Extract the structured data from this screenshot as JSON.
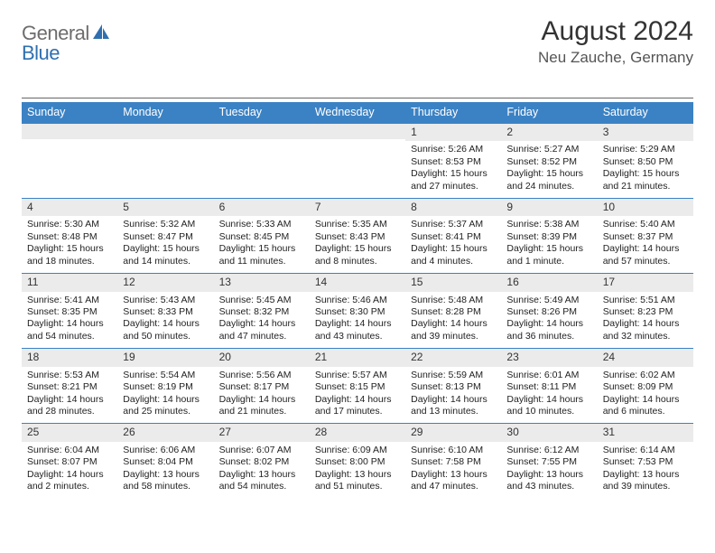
{
  "logo": {
    "general": "General",
    "blue": "Blue"
  },
  "title": "August 2024",
  "location": "Neu Zauche, Germany",
  "colors": {
    "header_bg": "#3b82c4",
    "header_text": "#ffffff",
    "daynum_bg": "#ebebeb",
    "border_top": "#3b82c4",
    "body_text": "#222222",
    "title_text": "#333333",
    "location_text": "#555555",
    "logo_gray": "#6d6d6d",
    "logo_blue": "#2f6fb0"
  },
  "daysOfWeek": [
    "Sunday",
    "Monday",
    "Tuesday",
    "Wednesday",
    "Thursday",
    "Friday",
    "Saturday"
  ],
  "weeks": [
    [
      null,
      null,
      null,
      null,
      {
        "num": "1",
        "sunrise": "5:26 AM",
        "sunset": "8:53 PM",
        "daylight": "Daylight: 15 hours and 27 minutes."
      },
      {
        "num": "2",
        "sunrise": "5:27 AM",
        "sunset": "8:52 PM",
        "daylight": "Daylight: 15 hours and 24 minutes."
      },
      {
        "num": "3",
        "sunrise": "5:29 AM",
        "sunset": "8:50 PM",
        "daylight": "Daylight: 15 hours and 21 minutes."
      }
    ],
    [
      {
        "num": "4",
        "sunrise": "5:30 AM",
        "sunset": "8:48 PM",
        "daylight": "Daylight: 15 hours and 18 minutes."
      },
      {
        "num": "5",
        "sunrise": "5:32 AM",
        "sunset": "8:47 PM",
        "daylight": "Daylight: 15 hours and 14 minutes."
      },
      {
        "num": "6",
        "sunrise": "5:33 AM",
        "sunset": "8:45 PM",
        "daylight": "Daylight: 15 hours and 11 minutes."
      },
      {
        "num": "7",
        "sunrise": "5:35 AM",
        "sunset": "8:43 PM",
        "daylight": "Daylight: 15 hours and 8 minutes."
      },
      {
        "num": "8",
        "sunrise": "5:37 AM",
        "sunset": "8:41 PM",
        "daylight": "Daylight: 15 hours and 4 minutes."
      },
      {
        "num": "9",
        "sunrise": "5:38 AM",
        "sunset": "8:39 PM",
        "daylight": "Daylight: 15 hours and 1 minute."
      },
      {
        "num": "10",
        "sunrise": "5:40 AM",
        "sunset": "8:37 PM",
        "daylight": "Daylight: 14 hours and 57 minutes."
      }
    ],
    [
      {
        "num": "11",
        "sunrise": "5:41 AM",
        "sunset": "8:35 PM",
        "daylight": "Daylight: 14 hours and 54 minutes."
      },
      {
        "num": "12",
        "sunrise": "5:43 AM",
        "sunset": "8:33 PM",
        "daylight": "Daylight: 14 hours and 50 minutes."
      },
      {
        "num": "13",
        "sunrise": "5:45 AM",
        "sunset": "8:32 PM",
        "daylight": "Daylight: 14 hours and 47 minutes."
      },
      {
        "num": "14",
        "sunrise": "5:46 AM",
        "sunset": "8:30 PM",
        "daylight": "Daylight: 14 hours and 43 minutes."
      },
      {
        "num": "15",
        "sunrise": "5:48 AM",
        "sunset": "8:28 PM",
        "daylight": "Daylight: 14 hours and 39 minutes."
      },
      {
        "num": "16",
        "sunrise": "5:49 AM",
        "sunset": "8:26 PM",
        "daylight": "Daylight: 14 hours and 36 minutes."
      },
      {
        "num": "17",
        "sunrise": "5:51 AM",
        "sunset": "8:23 PM",
        "daylight": "Daylight: 14 hours and 32 minutes."
      }
    ],
    [
      {
        "num": "18",
        "sunrise": "5:53 AM",
        "sunset": "8:21 PM",
        "daylight": "Daylight: 14 hours and 28 minutes."
      },
      {
        "num": "19",
        "sunrise": "5:54 AM",
        "sunset": "8:19 PM",
        "daylight": "Daylight: 14 hours and 25 minutes."
      },
      {
        "num": "20",
        "sunrise": "5:56 AM",
        "sunset": "8:17 PM",
        "daylight": "Daylight: 14 hours and 21 minutes."
      },
      {
        "num": "21",
        "sunrise": "5:57 AM",
        "sunset": "8:15 PM",
        "daylight": "Daylight: 14 hours and 17 minutes."
      },
      {
        "num": "22",
        "sunrise": "5:59 AM",
        "sunset": "8:13 PM",
        "daylight": "Daylight: 14 hours and 13 minutes."
      },
      {
        "num": "23",
        "sunrise": "6:01 AM",
        "sunset": "8:11 PM",
        "daylight": "Daylight: 14 hours and 10 minutes."
      },
      {
        "num": "24",
        "sunrise": "6:02 AM",
        "sunset": "8:09 PM",
        "daylight": "Daylight: 14 hours and 6 minutes."
      }
    ],
    [
      {
        "num": "25",
        "sunrise": "6:04 AM",
        "sunset": "8:07 PM",
        "daylight": "Daylight: 14 hours and 2 minutes."
      },
      {
        "num": "26",
        "sunrise": "6:06 AM",
        "sunset": "8:04 PM",
        "daylight": "Daylight: 13 hours and 58 minutes."
      },
      {
        "num": "27",
        "sunrise": "6:07 AM",
        "sunset": "8:02 PM",
        "daylight": "Daylight: 13 hours and 54 minutes."
      },
      {
        "num": "28",
        "sunrise": "6:09 AM",
        "sunset": "8:00 PM",
        "daylight": "Daylight: 13 hours and 51 minutes."
      },
      {
        "num": "29",
        "sunrise": "6:10 AM",
        "sunset": "7:58 PM",
        "daylight": "Daylight: 13 hours and 47 minutes."
      },
      {
        "num": "30",
        "sunrise": "6:12 AM",
        "sunset": "7:55 PM",
        "daylight": "Daylight: 13 hours and 43 minutes."
      },
      {
        "num": "31",
        "sunrise": "6:14 AM",
        "sunset": "7:53 PM",
        "daylight": "Daylight: 13 hours and 39 minutes."
      }
    ]
  ],
  "labels": {
    "sunrise": "Sunrise:",
    "sunset": "Sunset:"
  }
}
